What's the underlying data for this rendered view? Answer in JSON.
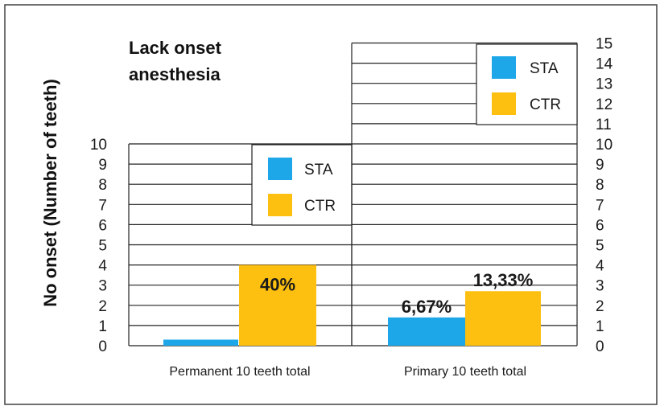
{
  "colors": {
    "STA": "#1ea7e8",
    "CTR": "#fdbf10",
    "grid": "#222222",
    "frame": "#333333"
  },
  "chart_data": {
    "type": "bar",
    "title": [
      "Lack onset",
      "anesthesia"
    ],
    "ylabel": "No onset (Number of teeth)",
    "panels": [
      {
        "category": "Permanent 10 teeth total",
        "ylim": [
          0,
          10
        ],
        "yticks": [
          "0",
          "1",
          "2",
          "3",
          "4",
          "5",
          "6",
          "7",
          "8",
          "9",
          "10"
        ],
        "tick_side": "left",
        "legend": {
          "position": "top-right",
          "entries": [
            "STA",
            "CTR"
          ]
        },
        "series": [
          {
            "name": "STA",
            "value": 0.3,
            "label": ""
          },
          {
            "name": "CTR",
            "value": 4,
            "label": "40%"
          }
        ]
      },
      {
        "category": "Primary 10 teeth total",
        "ylim": [
          0,
          15
        ],
        "yticks": [
          "0",
          "1",
          "2",
          "3",
          "4",
          "5",
          "6",
          "7",
          "8",
          "9",
          "10",
          "11",
          "12",
          "13",
          "14",
          "15"
        ],
        "tick_side": "right",
        "legend": {
          "position": "top-right",
          "entries": [
            "STA",
            "CTR"
          ]
        },
        "series": [
          {
            "name": "STA",
            "value": 1.4,
            "label": "6,67%"
          },
          {
            "name": "CTR",
            "value": 2.7,
            "label": "13,33%"
          }
        ]
      }
    ]
  }
}
